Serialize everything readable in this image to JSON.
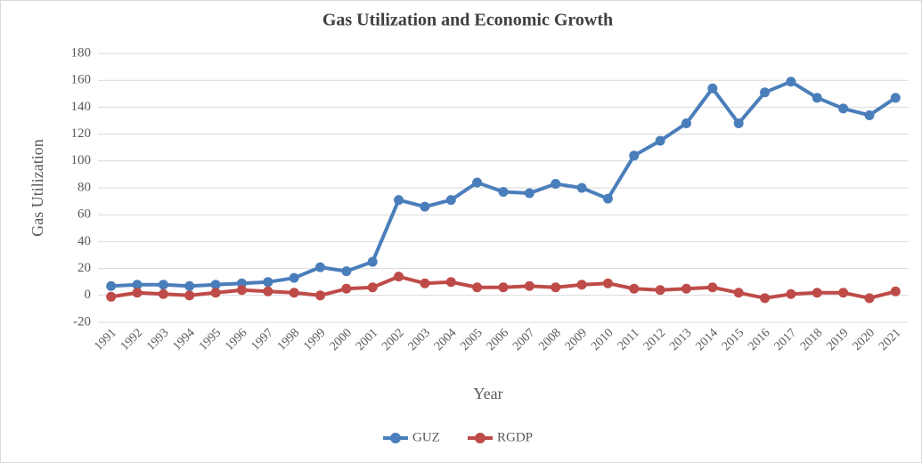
{
  "chart_data": {
    "type": "line",
    "title": "Gas Utilization and Economic Growth",
    "xlabel": "Year",
    "ylabel": "Gas Utilization",
    "categories": [
      "1991",
      "1992",
      "1993",
      "1994",
      "1995",
      "1996",
      "1997",
      "1998",
      "1999",
      "2000",
      "2001",
      "2002",
      "2003",
      "2004",
      "2005",
      "2006",
      "2007",
      "2008",
      "2009",
      "2010",
      "2011",
      "2012",
      "2013",
      "2014",
      "2015",
      "2016",
      "2017",
      "2018",
      "2019",
      "2020",
      "2021"
    ],
    "series": [
      {
        "name": "GUZ",
        "color": "#4a7ebb",
        "values": [
          7,
          8,
          8,
          7,
          8,
          9,
          10,
          13,
          21,
          18,
          25,
          71,
          66,
          71,
          84,
          77,
          76,
          83,
          80,
          72,
          104,
          115,
          128,
          154,
          128,
          151,
          159,
          147,
          139,
          134,
          147
        ]
      },
      {
        "name": "RGDP",
        "color": "#be4b48",
        "values": [
          -1,
          2,
          1,
          0,
          2,
          4,
          3,
          2,
          0,
          5,
          6,
          14,
          9,
          10,
          6,
          6,
          7,
          6,
          8,
          9,
          5,
          4,
          5,
          6,
          2,
          -2,
          1,
          2,
          2,
          -2,
          3
        ]
      }
    ],
    "ylim": [
      -20,
      180
    ],
    "yticks": [
      -20,
      0,
      20,
      40,
      60,
      80,
      100,
      120,
      140,
      160,
      180
    ],
    "grid": true,
    "legend": "bottom"
  }
}
